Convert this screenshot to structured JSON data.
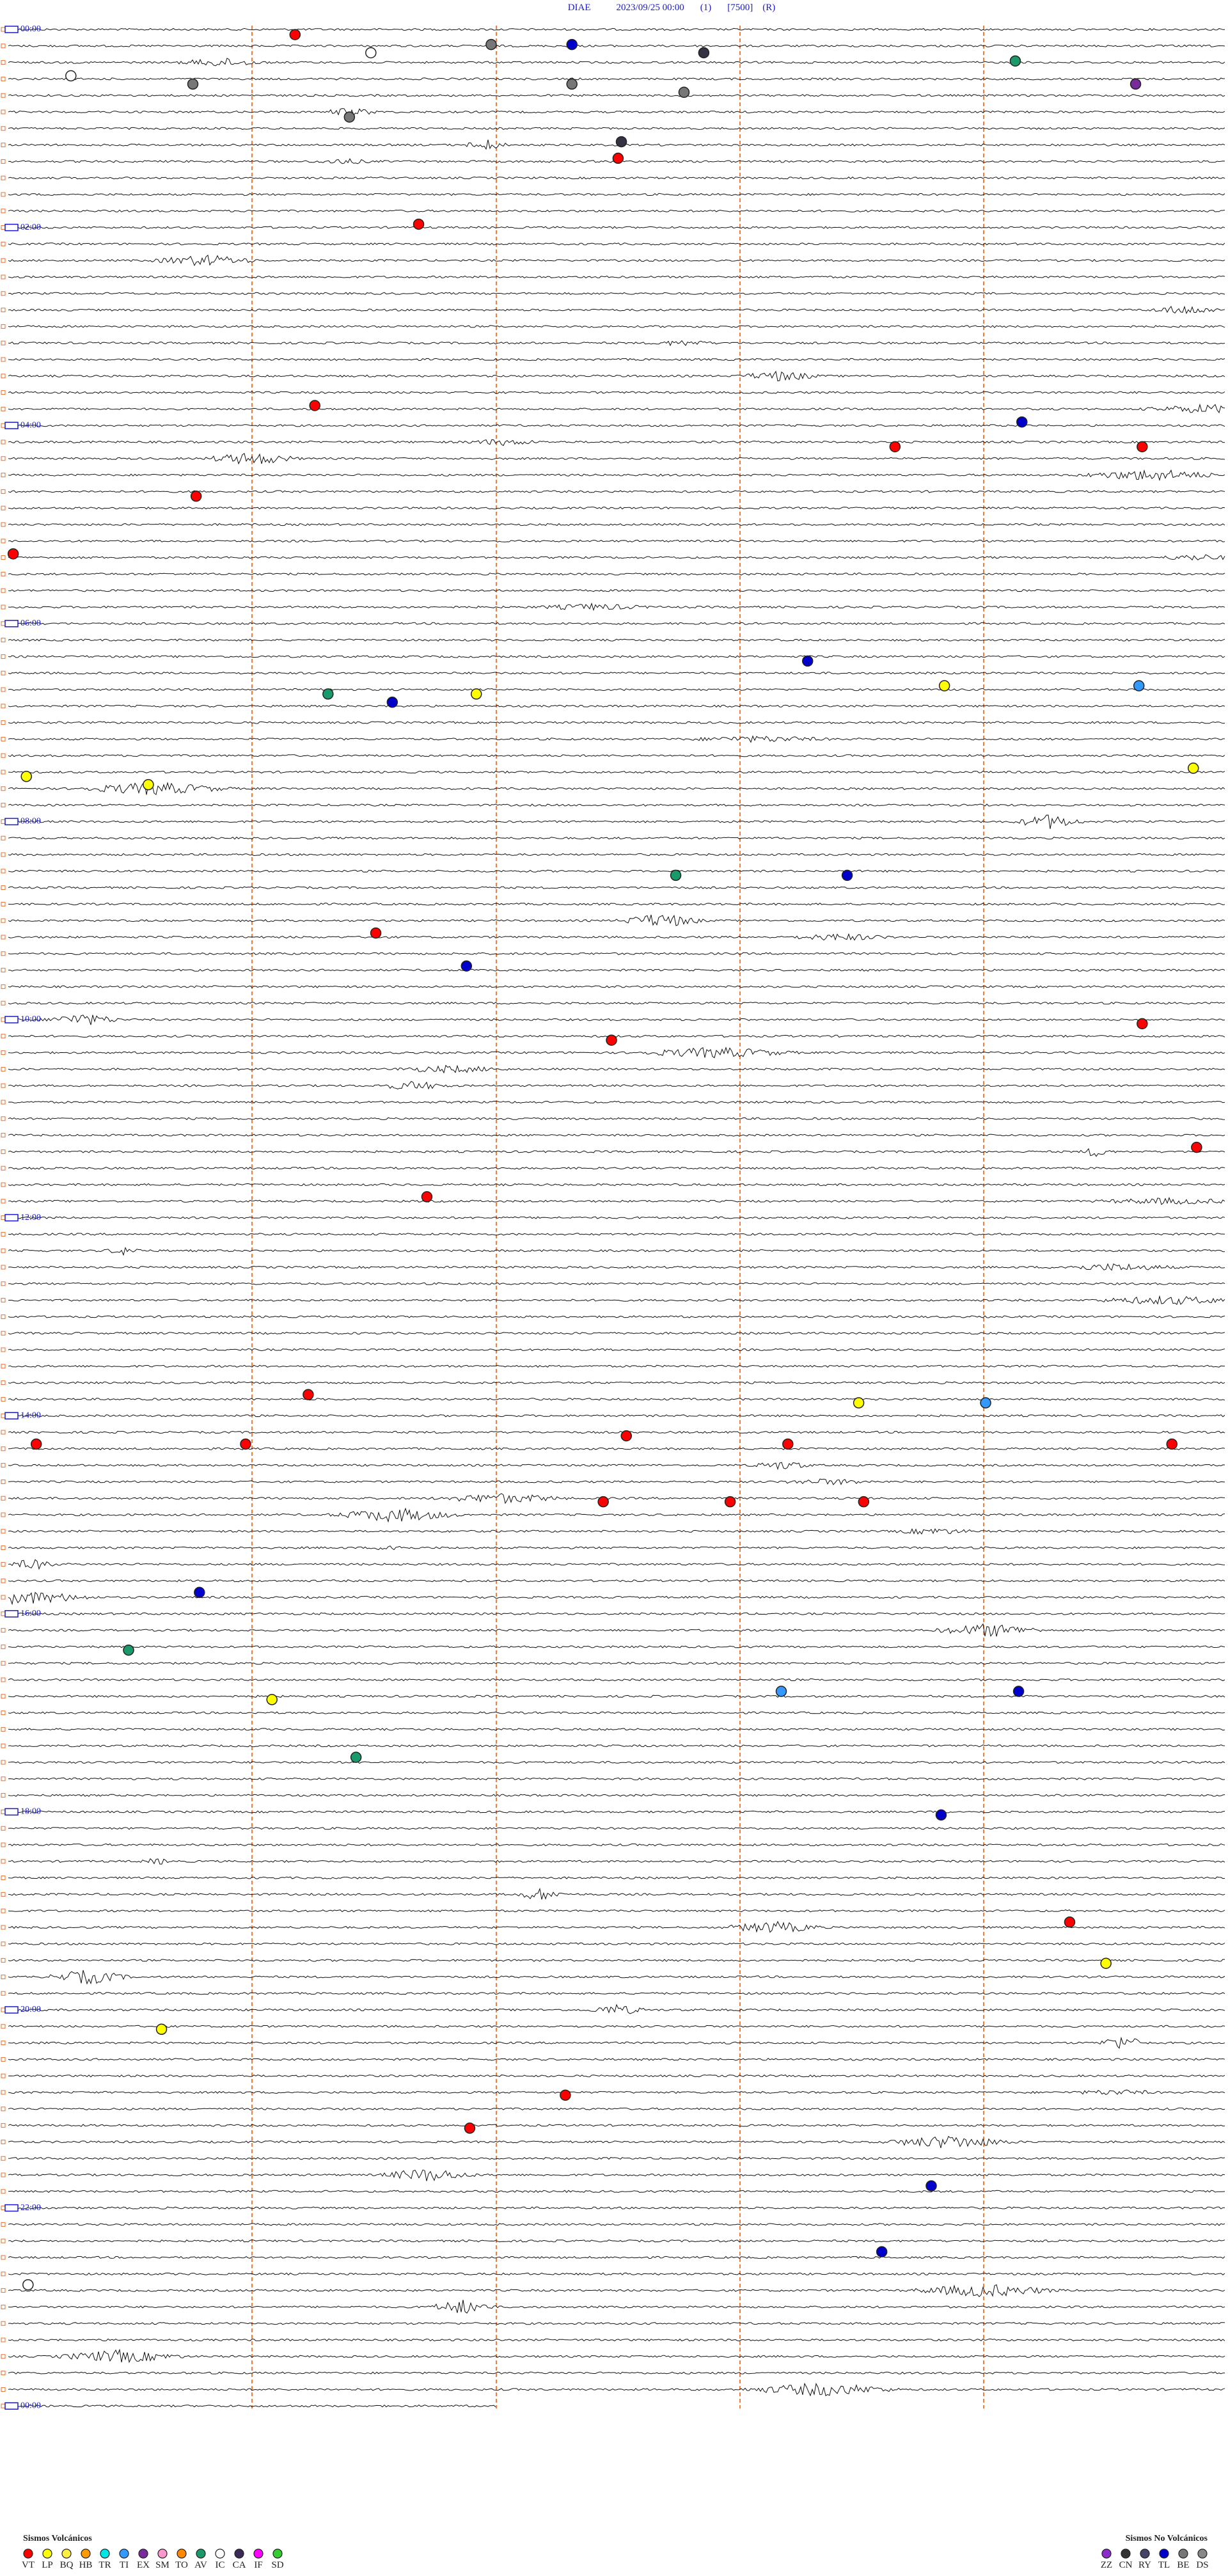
{
  "header": {
    "station": "DIAE",
    "datetime": "2023/09/25 00:00",
    "channel": "(1)",
    "scale": "[7500]",
    "mode": "(R)"
  },
  "time_labels": [
    "00:00",
    "02:00",
    "04:00",
    "06:00",
    "08:00",
    "10:00",
    "12:00",
    "14:00",
    "16:00",
    "18:00",
    "20:00",
    "22:00",
    "00:00"
  ],
  "legend": {
    "volcanic": {
      "title": "Sismos Volcánicos",
      "items": [
        {
          "code": "VT",
          "color": "#ff0000"
        },
        {
          "code": "LP",
          "color": "#ffff00"
        },
        {
          "code": "BQ",
          "color": "#ffee44"
        },
        {
          "code": "HB",
          "color": "#ff9900"
        },
        {
          "code": "TR",
          "color": "#00e5e5"
        },
        {
          "code": "TI",
          "color": "#3399ff"
        },
        {
          "code": "EX",
          "color": "#7a2a9a"
        },
        {
          "code": "SM",
          "color": "#ff99cc"
        },
        {
          "code": "TO",
          "color": "#ff8800"
        },
        {
          "code": "AV",
          "color": "#1a9a6a"
        },
        {
          "code": "IC",
          "color": "#ffffff"
        },
        {
          "code": "CA",
          "color": "#3a2a5a"
        },
        {
          "code": "IF",
          "color": "#ff00ff"
        },
        {
          "code": "SD",
          "color": "#33cc33"
        }
      ]
    },
    "non_volcanic": {
      "title": "Sismos No Volcánicos",
      "items": [
        {
          "code": "ZZ",
          "color": "#8a2aca"
        },
        {
          "code": "CN",
          "color": "#333333"
        },
        {
          "code": "RY",
          "color": "#444466"
        },
        {
          "code": "TL",
          "color": "#0000cc"
        },
        {
          "code": "BE",
          "color": "#777777"
        },
        {
          "code": "DS",
          "color": "#888888"
        }
      ]
    }
  }
}
